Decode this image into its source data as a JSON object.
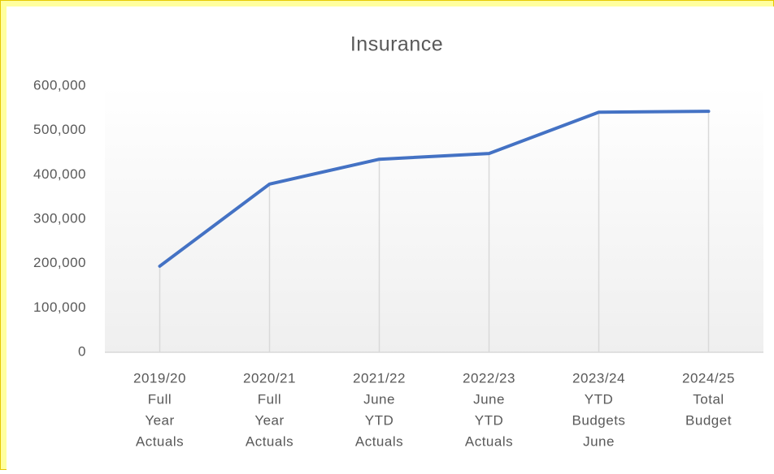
{
  "chart_data": {
    "type": "line",
    "title": "Insurance",
    "categories": [
      [
        "2019/20",
        "Full",
        "Year",
        "Actuals"
      ],
      [
        "2020/21",
        "Full",
        "Year",
        "Actuals"
      ],
      [
        "2021/22",
        "June",
        "YTD",
        "Actuals"
      ],
      [
        "2022/23",
        "June",
        "YTD",
        "Actuals"
      ],
      [
        "2023/24",
        "YTD",
        "Budgets",
        "June"
      ],
      [
        "2024/25",
        "Total",
        "Budget"
      ]
    ],
    "values": [
      194000,
      379000,
      435000,
      448000,
      541000,
      543000
    ],
    "color": "#4472c4",
    "ylim": [
      0,
      600000
    ],
    "yticks": [
      0,
      {
        "value": 100000,
        "label": "100,000"
      },
      {
        "value": 200000,
        "label": "200,000"
      },
      {
        "value": 300000,
        "label": "300,000"
      },
      {
        "value": 400000,
        "label": "400,000"
      },
      {
        "value": 500000,
        "label": "500,000"
      },
      {
        "value": 600000,
        "label": "600,000"
      }
    ],
    "grid": false,
    "drop_lines": true
  }
}
